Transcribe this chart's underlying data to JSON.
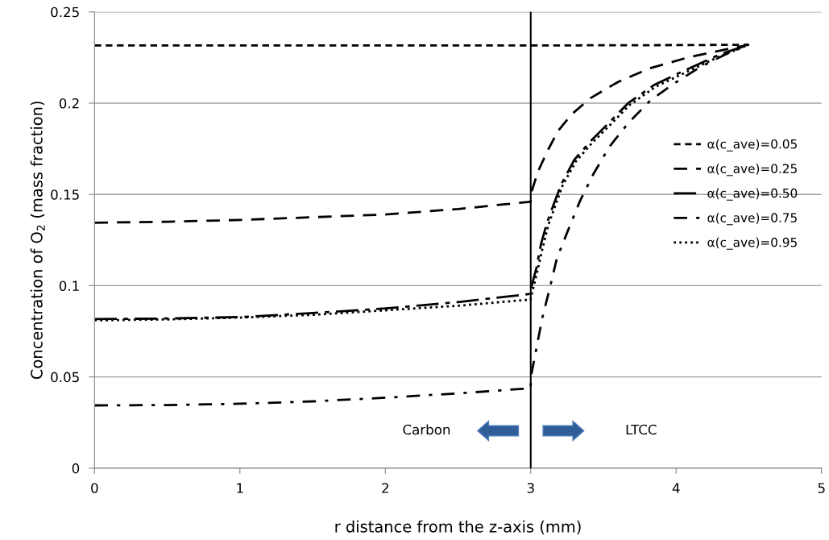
{
  "chart_data": {
    "type": "line",
    "xlabel": "r distance from the z-axis (mm)",
    "ylabel": "Concentration of O$_{2}$ (mass fraction)",
    "xlim": [
      0,
      5
    ],
    "ylim": [
      0,
      0.25
    ],
    "xticks": [
      0,
      1,
      2,
      3,
      4,
      5
    ],
    "yticks": [
      0,
      0.05,
      0.1,
      0.15,
      0.2,
      0.25
    ],
    "grid": "y",
    "legend": "right",
    "marker": "none",
    "ref_lines": [
      {
        "axis": "x",
        "value": 3,
        "color": "#000000",
        "line_style": "solid"
      }
    ],
    "annotations": [
      "Carbon",
      "LTCC"
    ],
    "series": [
      {
        "name": "α(c_ave)=0.05",
        "color": "#000000",
        "line_style": "shortdash",
        "x": [
          0,
          1,
          2,
          3,
          4,
          4.5
        ],
        "values": [
          0.2316,
          0.2316,
          0.2316,
          0.2316,
          0.2318,
          0.232
        ]
      },
      {
        "name": "α(c_ave)=0.25",
        "color": "#000000",
        "line_style": "dashed",
        "x": [
          0,
          0.5,
          1,
          1.5,
          2,
          2.5,
          3,
          3,
          3.05,
          3.12,
          3.19,
          3.28,
          3.41,
          3.6,
          3.82,
          4.08,
          4.34,
          4.5
        ],
        "values": [
          0.1345,
          0.135,
          0.136,
          0.1375,
          0.139,
          0.142,
          0.146,
          0.15,
          0.1626,
          0.1746,
          0.185,
          0.1938,
          0.2027,
          0.2116,
          0.2191,
          0.225,
          0.2294,
          0.232
        ]
      },
      {
        "name": "α(c_ave)=0.50",
        "color": "#000000",
        "line_style": "longdashdot",
        "x": [
          0,
          0.5,
          1,
          1.5,
          2,
          2.5,
          3,
          3,
          3.04,
          3.07,
          3.11,
          3.16,
          3.21,
          3.3,
          3.41,
          3.56,
          3.67,
          3.85,
          4.06,
          4.3,
          4.5
        ],
        "values": [
          0.0817,
          0.082,
          0.0828,
          0.085,
          0.0875,
          0.091,
          0.0955,
          0.098,
          0.11,
          0.1225,
          0.134,
          0.145,
          0.1555,
          0.169,
          0.179,
          0.191,
          0.2,
          0.21,
          0.218,
          0.2267,
          0.232
        ]
      },
      {
        "name": "α(c_ave)=0.75",
        "color": "#000000",
        "line_style": "dashdot",
        "x": [
          0,
          0.5,
          1,
          1.5,
          2,
          2.5,
          3,
          3,
          3.04,
          3.08,
          3.13,
          3.18,
          3.26,
          3.34,
          3.43,
          3.54,
          3.67,
          3.82,
          3.99,
          4.17,
          4.34,
          4.5
        ],
        "values": [
          0.0344,
          0.0346,
          0.0353,
          0.0366,
          0.0386,
          0.041,
          0.0438,
          0.0496,
          0.066,
          0.0825,
          0.0983,
          0.115,
          0.131,
          0.1466,
          0.161,
          0.176,
          0.189,
          0.2013,
          0.211,
          0.22,
          0.2267,
          0.232
        ]
      },
      {
        "name": "α(c_ave)=0.95",
        "color": "#000000",
        "line_style": "dotted",
        "x": [
          0,
          0.5,
          1,
          1.5,
          2,
          2.5,
          3,
          3,
          3.04,
          3.08,
          3.12,
          3.17,
          3.22,
          3.31,
          3.42,
          3.57,
          3.68,
          3.86,
          4.07,
          4.31,
          4.5
        ],
        "values": [
          0.081,
          0.0815,
          0.0825,
          0.084,
          0.0865,
          0.089,
          0.0924,
          0.093,
          0.106,
          0.12,
          0.133,
          0.144,
          0.155,
          0.168,
          0.178,
          0.19,
          0.199,
          0.209,
          0.217,
          0.226,
          0.232
        ]
      }
    ]
  }
}
